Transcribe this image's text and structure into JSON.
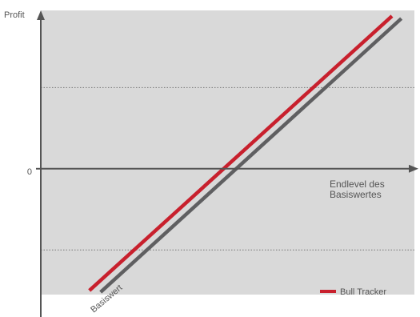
{
  "chart_data": {
    "type": "line",
    "title": "",
    "ylabel": "Profit",
    "xlabel_lines": [
      "Endlevel des",
      "Basiswertes"
    ],
    "y_ticks": [
      {
        "value": 0,
        "label": "0"
      }
    ],
    "xlim": [
      -1,
      1
    ],
    "ylim": [
      -1.55,
      1.95
    ],
    "reference_gridlines_y": [
      1,
      -1
    ],
    "grid": "dotted horizontal",
    "series": [
      {
        "name": "Basiswert",
        "color": "#5f5f61",
        "x": [
          -0.68,
          0.93
        ],
        "y": [
          -1.52,
          1.85
        ]
      },
      {
        "name": "Bull Tracker",
        "color": "#c8202d",
        "x": [
          -0.74,
          0.88
        ],
        "y": [
          -1.5,
          1.88
        ]
      }
    ],
    "legend": {
      "position": "bottom-right",
      "entries": [
        "Bull Tracker"
      ]
    },
    "colors": {
      "plot_bg": "#d9d9d9",
      "axis": "#555555",
      "grid": "#777777"
    }
  }
}
